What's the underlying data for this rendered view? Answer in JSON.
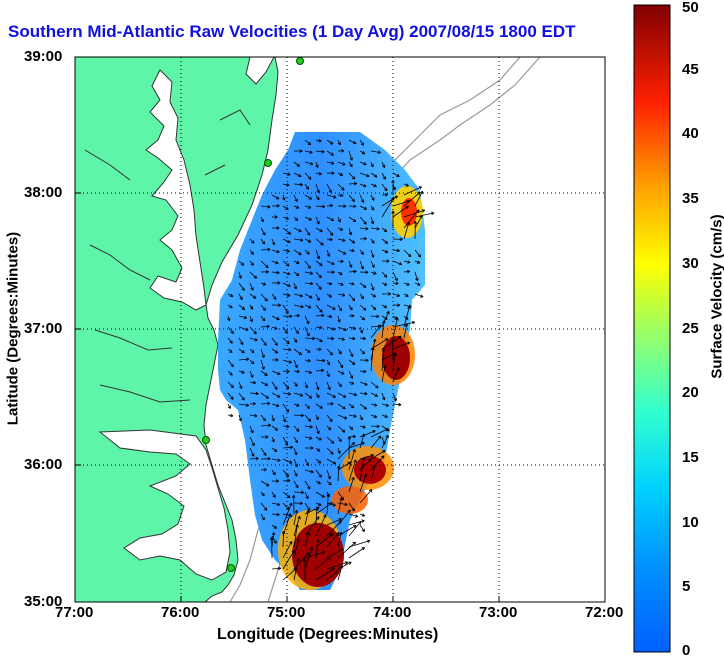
{
  "title": "Southern Mid-Atlantic Raw Velocities (1 Day Avg) 2007/08/15 1800 EDT",
  "map": {
    "xlabel": "Longitude (Degrees:Minutes)",
    "ylabel": "Latitude (Degrees:Minutes)",
    "x_ticks": [
      "77:00",
      "76:00",
      "75:00",
      "74:00",
      "73:00",
      "72:00"
    ],
    "y_ticks": [
      "39:00",
      "38:00",
      "37:00",
      "36:00",
      "35:00"
    ],
    "grid": "dotted",
    "colors": {
      "land": "#5ef5a8",
      "water": "#ffffff",
      "coast": "#333333",
      "bathymetry": "#9a9a9a",
      "station": "#22cc22"
    }
  },
  "colorbar": {
    "label": "Surface Velocity (cm/s)",
    "ticks": [
      "50",
      "45",
      "40",
      "35",
      "30",
      "25",
      "20",
      "15",
      "10",
      "5",
      "0"
    ],
    "min": 0,
    "max": 50,
    "colormap": "jet"
  }
}
